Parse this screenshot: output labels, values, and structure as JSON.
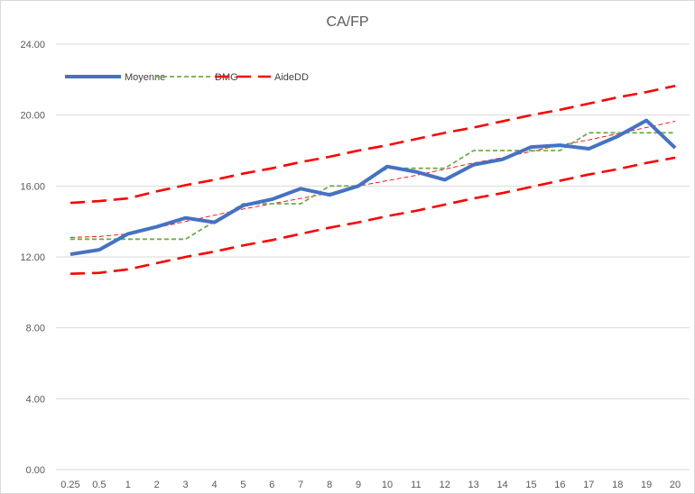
{
  "chart_data": {
    "type": "line",
    "title": "CA/FP",
    "xlabel": "",
    "ylabel": "",
    "categories": [
      "0.25",
      "0.5",
      "1",
      "2",
      "3",
      "4",
      "5",
      "6",
      "7",
      "8",
      "9",
      "10",
      "11",
      "12",
      "13",
      "14",
      "15",
      "16",
      "17",
      "18",
      "19",
      "20"
    ],
    "ylim": [
      0,
      24
    ],
    "yticks": [
      "0.00",
      "4.00",
      "8.00",
      "12.00",
      "16.00",
      "20.00",
      "24.00"
    ],
    "grid": true,
    "legend_position": "top-left",
    "series": [
      {
        "name": "Moyenne",
        "color": "#4472C4",
        "style": "solid-thick",
        "values": [
          12.15,
          12.4,
          13.3,
          13.7,
          14.2,
          13.95,
          14.9,
          15.25,
          15.85,
          15.5,
          16.0,
          17.1,
          16.8,
          16.35,
          17.2,
          17.5,
          18.2,
          18.3,
          18.1,
          18.8,
          19.7,
          18.15
        ]
      },
      {
        "name": "DMG",
        "color": "#70AD47",
        "style": "dashed",
        "values": [
          13,
          13,
          13,
          13,
          13,
          14,
          15,
          15,
          15,
          16,
          16,
          17,
          17,
          17,
          18,
          18,
          18,
          18,
          19,
          19,
          19,
          19
        ]
      },
      {
        "name": "AideDD",
        "color": "#FF0000",
        "style": "long-dash",
        "upper": [
          15.05,
          15.15,
          15.3,
          15.7,
          16.05,
          16.35,
          16.7,
          17.0,
          17.35,
          17.65,
          18.0,
          18.3,
          18.65,
          19.0,
          19.3,
          19.65,
          20.0,
          20.3,
          20.65,
          21.0,
          21.3,
          21.65
        ],
        "lower": [
          11.05,
          11.1,
          11.3,
          11.65,
          12.0,
          12.3,
          12.65,
          12.95,
          13.3,
          13.65,
          13.95,
          14.3,
          14.6,
          14.95,
          15.3,
          15.6,
          15.95,
          16.3,
          16.65,
          16.95,
          17.3,
          17.6
        ]
      },
      {
        "name": "",
        "color": "#FF0000",
        "style": "thin-dash",
        "legend": false,
        "values": [
          13.1,
          13.15,
          13.3,
          13.65,
          14.0,
          14.35,
          14.7,
          15.0,
          15.3,
          15.6,
          16.0,
          16.3,
          16.6,
          16.95,
          17.3,
          17.6,
          17.95,
          18.3,
          18.6,
          18.95,
          19.3,
          19.65
        ]
      }
    ]
  }
}
